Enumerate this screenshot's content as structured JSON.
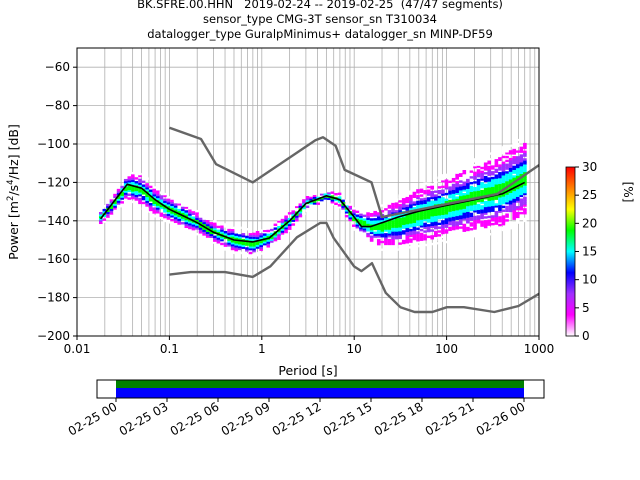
{
  "title": {
    "line1": "BK.SFRE.00.HHN   2019-02-24 -- 2019-02-25  (47/47 segments)",
    "line2": "sensor_type CMG-3T sensor_sn T310034",
    "line3": "datalogger_type GuralpMinimus+ datalogger_sn MINP-DF59"
  },
  "chart_data": [
    {
      "type": "heatmap",
      "xlabel": "Period [s]",
      "ylabel_parts": {
        "pre": "Power [m",
        "exp1": "2",
        "mid": "/s",
        "exp2": "4",
        "post": "/Hz] [dB]"
      },
      "x_scale": "log",
      "xlim": [
        0.01,
        1000
      ],
      "ylim": [
        -200,
        -50
      ],
      "x_ticks": [
        {
          "v": 0.01,
          "label": "0.01"
        },
        {
          "v": 0.1,
          "label": "0.1"
        },
        {
          "v": 1,
          "label": "1"
        },
        {
          "v": 10,
          "label": "10"
        },
        {
          "v": 100,
          "label": "100"
        },
        {
          "v": 1000,
          "label": "1000"
        }
      ],
      "y_ticks": [
        {
          "v": -60,
          "label": "−60"
        },
        {
          "v": -80,
          "label": "−80"
        },
        {
          "v": -100,
          "label": "−100"
        },
        {
          "v": -120,
          "label": "−120"
        },
        {
          "v": -140,
          "label": "−140"
        },
        {
          "v": -160,
          "label": "−160"
        },
        {
          "v": -180,
          "label": "−180"
        },
        {
          "v": -200,
          "label": "−200"
        }
      ],
      "grid": true,
      "colorbar": {
        "label": "[%]",
        "range": [
          0,
          30
        ],
        "ticks": [
          {
            "v": 0,
            "label": "0"
          },
          {
            "v": 5,
            "label": "5"
          },
          {
            "v": 10,
            "label": "10"
          },
          {
            "v": 15,
            "label": "15"
          },
          {
            "v": 20,
            "label": "20"
          },
          {
            "v": 25,
            "label": "25"
          },
          {
            "v": 30,
            "label": "30"
          }
        ],
        "colors": [
          "#ffffff",
          "#ff00ff",
          "#a030ff",
          "#0000ff",
          "#00ffff",
          "#00ff00",
          "#ffff00",
          "#ff8000",
          "#ff0000"
        ]
      },
      "series": [
        {
          "role": "mean",
          "color": "#000000",
          "x": [
            0.018,
            0.025,
            0.035,
            0.05,
            0.07,
            0.1,
            0.15,
            0.2,
            0.3,
            0.5,
            0.8,
            1.2,
            2,
            3,
            5,
            7,
            10,
            12,
            15,
            20,
            30,
            50,
            100,
            200,
            400,
            700
          ],
          "y": [
            -139,
            -130,
            -121,
            -123,
            -129,
            -134,
            -138,
            -141,
            -146,
            -150,
            -151,
            -149,
            -140,
            -131,
            -127,
            -129,
            -138,
            -143,
            -143,
            -141,
            -138,
            -135,
            -132,
            -129,
            -126,
            -120
          ]
        },
        {
          "role": "new-high-noise-model",
          "color": "#666666",
          "x": [
            0.1,
            0.22,
            0.32,
            0.8,
            3.8,
            4.6,
            6.3,
            7.9,
            15.4,
            20,
            354.8,
            1000
          ],
          "y": [
            -91.5,
            -97.4,
            -110.5,
            -120,
            -98,
            -96.5,
            -101,
            -113.5,
            -120,
            -138,
            -126,
            -111
          ]
        },
        {
          "role": "new-low-noise-model",
          "color": "#666666",
          "x": [
            0.1,
            0.17,
            0.4,
            0.8,
            1.24,
            2.4,
            4.3,
            5,
            6,
            10,
            12,
            15.6,
            21.9,
            31.6,
            45,
            70,
            101,
            154,
            328,
            600,
            1000
          ],
          "y": [
            -168,
            -166.7,
            -166.7,
            -169.2,
            -163.7,
            -148.6,
            -141.1,
            -141.1,
            -149,
            -163.8,
            -166.2,
            -162.1,
            -177.5,
            -185,
            -187.5,
            -187.5,
            -185,
            -185,
            -187.5,
            -184.4,
            -178
          ]
        }
      ],
      "density": [
        {
          "x": 0.018,
          "y": -138,
          "spread": 4
        },
        {
          "x": 0.025,
          "y": -131,
          "spread": 5
        },
        {
          "x": 0.035,
          "y": -122,
          "spread": 8
        },
        {
          "x": 0.05,
          "y": -124,
          "spread": 9
        },
        {
          "x": 0.07,
          "y": -130,
          "spread": 8
        },
        {
          "x": 0.1,
          "y": -134,
          "spread": 7
        },
        {
          "x": 0.15,
          "y": -138,
          "spread": 7
        },
        {
          "x": 0.2,
          "y": -141,
          "spread": 6
        },
        {
          "x": 0.3,
          "y": -146,
          "spread": 6
        },
        {
          "x": 0.5,
          "y": -150,
          "spread": 7
        },
        {
          "x": 0.8,
          "y": -152,
          "spread": 7
        },
        {
          "x": 1.2,
          "y": -149,
          "spread": 6
        },
        {
          "x": 2,
          "y": -140,
          "spread": 5
        },
        {
          "x": 3,
          "y": -131,
          "spread": 4
        },
        {
          "x": 5,
          "y": -127,
          "spread": 3
        },
        {
          "x": 7,
          "y": -129,
          "spread": 4
        },
        {
          "x": 10,
          "y": -139,
          "spread": 6
        },
        {
          "x": 15,
          "y": -143,
          "spread": 9
        },
        {
          "x": 20,
          "y": -143,
          "spread": 12
        },
        {
          "x": 30,
          "y": -141,
          "spread": 14
        },
        {
          "x": 50,
          "y": -137,
          "spread": 16
        },
        {
          "x": 100,
          "y": -133,
          "spread": 18
        },
        {
          "x": 200,
          "y": -128,
          "spread": 20
        },
        {
          "x": 400,
          "y": -124,
          "spread": 22
        },
        {
          "x": 700,
          "y": -118,
          "spread": 22
        }
      ]
    },
    {
      "type": "timeline",
      "x_ticks": [
        "02-25 00",
        "02-25 03",
        "02-25 06",
        "02-25 09",
        "02-25 12",
        "02-25 15",
        "02-25 18",
        "02-25 21",
        "02-26 00"
      ],
      "bands": [
        {
          "role": "data-available",
          "color": "#008000",
          "start": "02-25 00",
          "end": "02-26 00"
        },
        {
          "role": "psd-used",
          "color": "#0000ff",
          "start": "02-25 00",
          "end": "02-26 00"
        }
      ]
    }
  ]
}
